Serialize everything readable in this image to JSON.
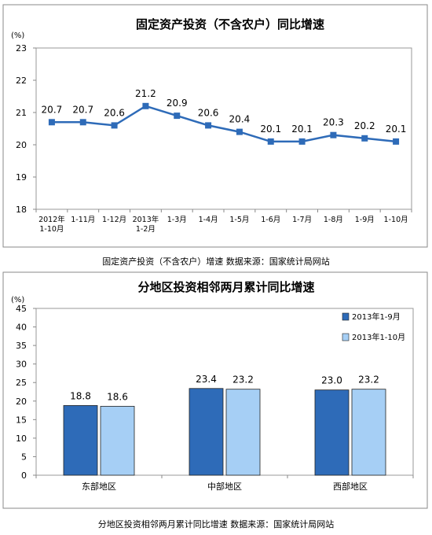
{
  "charts": {
    "line": {
      "title": "固定资产投资（不含农户）同比增速",
      "unit": "(%)",
      "caption": "固定资产投资（不含农户）增速 数据来源：国家统计局网站"
    },
    "bar": {
      "title": "分地区投资相邻两月累计同比增速",
      "unit": "(%)",
      "caption": "分地区投资相邻两月累计同比增速 数据来源：国家统计局网站"
    }
  },
  "colors": {
    "line": "#2e6bb8",
    "series1": "#2e6bb8",
    "series2": "#a6cff5",
    "plot_bg": "#ffffff"
  },
  "chart_data": [
    {
      "type": "line",
      "title": "固定资产投资（不含农户）同比增速",
      "ylabel": "(%)",
      "ylim": [
        18,
        23
      ],
      "yticks": [
        18,
        19,
        20,
        21,
        22,
        23
      ],
      "grid": false,
      "categories": [
        "2012年\n1-10月",
        "1-11月",
        "1-12月",
        "2013年\n1-2月",
        "1-3月",
        "1-4月",
        "1-5月",
        "1-6月",
        "1-7月",
        "1-8月",
        "1-9月",
        "1-10月"
      ],
      "values": [
        20.7,
        20.7,
        20.6,
        21.2,
        20.9,
        20.6,
        20.4,
        20.1,
        20.1,
        20.3,
        20.2,
        20.1
      ],
      "data_labels": [
        "20.7",
        "20.7",
        "20.6",
        "21.2",
        "20.9",
        "20.6",
        "20.4",
        "20.1",
        "20.1",
        "20.3",
        "20.2",
        "20.1"
      ]
    },
    {
      "type": "bar",
      "title": "分地区投资相邻两月累计同比增速",
      "ylabel": "(%)",
      "ylim": [
        0,
        45
      ],
      "yticks": [
        0,
        5,
        10,
        15,
        20,
        25,
        30,
        35,
        40,
        45
      ],
      "grid": false,
      "legend_position": "top-right",
      "categories": [
        "东部地区",
        "中部地区",
        "西部地区"
      ],
      "series": [
        {
          "name": "2013年1-9月",
          "values": [
            18.8,
            23.4,
            23.0
          ],
          "labels": [
            "18.8",
            "23.4",
            "23.0"
          ]
        },
        {
          "name": "2013年1-10月",
          "values": [
            18.6,
            23.2,
            23.2
          ],
          "labels": [
            "18.6",
            "23.2",
            "23.2"
          ]
        }
      ]
    }
  ]
}
